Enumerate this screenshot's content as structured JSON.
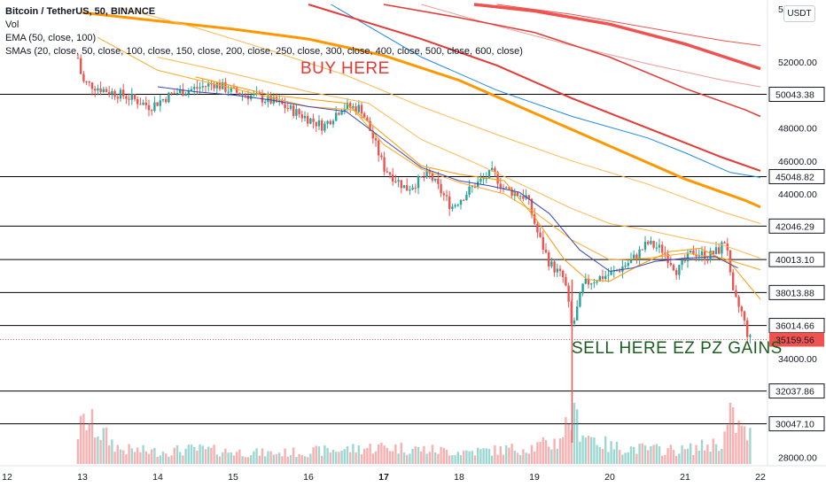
{
  "chart_data": {
    "type": "candlestick",
    "legend": {
      "symbol": "Bitcoin / TetherUS, 50, BINANCE",
      "volume": "Vol",
      "ema": "EMA (50, close, 100)",
      "smas": "SMAs (20, close, 50, close, 100, close, 150, close, 200, close, 250, close, 300, close, 400, close, 500, close, 600, close)"
    },
    "currency": "USDT",
    "annotations": {
      "buy": "BUY HERE",
      "sell": "SELL HERE EZ PZ GAINS"
    },
    "ylim": [
      27500,
      55500
    ],
    "y_ticks": [
      "52000.00",
      "48000.00",
      "46000.00",
      "44000.00",
      "34000.00",
      "28000.00"
    ],
    "y_tick_values": [
      52000,
      48000,
      46000,
      44000,
      34000,
      28000
    ],
    "y_top_clipped_label": "5",
    "horizontal_levels": [
      50043.38,
      45048.82,
      42046.29,
      40013.1,
      38013.88,
      36014.66,
      32037.86,
      30047.1
    ],
    "horizontal_level_labels": [
      "50043.38",
      "45048.82",
      "42046.29",
      "40013.10",
      "38013.88",
      "36014.66",
      "32037.86",
      "30047.10"
    ],
    "last_price": 35159.56,
    "last_price_label": "35159.56",
    "x_ticks": [
      "12",
      "13",
      "14",
      "15",
      "16",
      "17",
      "18",
      "19",
      "20",
      "21",
      "22"
    ],
    "x_tick_days": [
      12,
      13,
      14,
      15,
      16,
      17,
      18,
      19,
      20,
      21,
      22
    ],
    "price_path": [
      [
        12.85,
        54500
      ],
      [
        13.0,
        50800
      ],
      [
        13.3,
        50300
      ],
      [
        13.6,
        49900
      ],
      [
        13.9,
        49300
      ],
      [
        14.2,
        50100
      ],
      [
        14.5,
        50400
      ],
      [
        14.75,
        50700
      ],
      [
        15.0,
        50200
      ],
      [
        15.3,
        49900
      ],
      [
        15.6,
        49500
      ],
      [
        15.9,
        48800
      ],
      [
        16.2,
        48100
      ],
      [
        16.45,
        49300
      ],
      [
        16.7,
        49200
      ],
      [
        16.85,
        47500
      ],
      [
        17.0,
        45600
      ],
      [
        17.3,
        44300
      ],
      [
        17.6,
        45200
      ],
      [
        17.9,
        43200
      ],
      [
        18.2,
        44500
      ],
      [
        18.45,
        45300
      ],
      [
        18.6,
        44300
      ],
      [
        18.9,
        43800
      ],
      [
        19.05,
        41500
      ],
      [
        19.2,
        39800
      ],
      [
        19.4,
        38800
      ],
      [
        19.5,
        35800
      ],
      [
        19.65,
        38500
      ],
      [
        19.85,
        38900
      ],
      [
        20.05,
        39200
      ],
      [
        20.3,
        40000
      ],
      [
        20.5,
        41000
      ],
      [
        20.7,
        40600
      ],
      [
        20.9,
        39300
      ],
      [
        21.1,
        40500
      ],
      [
        21.3,
        40200
      ],
      [
        21.45,
        40600
      ],
      [
        21.55,
        41300
      ],
      [
        21.62,
        38000
      ],
      [
        21.75,
        36800
      ],
      [
        21.85,
        35160
      ]
    ],
    "volume_profile": [
      [
        12.85,
        0.45
      ],
      [
        13.05,
        0.9
      ],
      [
        13.5,
        0.3
      ],
      [
        14.0,
        0.25
      ],
      [
        14.5,
        0.3
      ],
      [
        15.0,
        0.25
      ],
      [
        15.5,
        0.22
      ],
      [
        16.0,
        0.25
      ],
      [
        16.5,
        0.3
      ],
      [
        17.0,
        0.35
      ],
      [
        17.5,
        0.3
      ],
      [
        18.0,
        0.25
      ],
      [
        18.5,
        0.28
      ],
      [
        19.0,
        0.35
      ],
      [
        19.3,
        0.45
      ],
      [
        19.5,
        1.0
      ],
      [
        19.7,
        0.6
      ],
      [
        20.0,
        0.35
      ],
      [
        20.5,
        0.3
      ],
      [
        21.0,
        0.28
      ],
      [
        21.5,
        0.45
      ],
      [
        21.6,
        0.95
      ],
      [
        21.8,
        0.6
      ]
    ],
    "ema_blue": [
      [
        14.0,
        50500
      ],
      [
        14.5,
        50200
      ],
      [
        15.0,
        50000
      ],
      [
        15.5,
        49700
      ],
      [
        16.0,
        49300
      ],
      [
        16.5,
        49000
      ],
      [
        17.0,
        47300
      ],
      [
        17.5,
        45600
      ],
      [
        18.0,
        44800
      ],
      [
        18.4,
        44500
      ],
      [
        18.8,
        44100
      ],
      [
        19.2,
        42800
      ],
      [
        19.6,
        40600
      ],
      [
        20.0,
        39300
      ],
      [
        20.3,
        39500
      ],
      [
        20.6,
        39900
      ],
      [
        21.0,
        40100
      ],
      [
        21.4,
        40200
      ],
      [
        21.7,
        39500
      ]
    ],
    "moving_averages": [
      {
        "color": "#1e88e5",
        "width": 1,
        "points": [
          [
            16.3,
            55500
          ],
          [
            17.5,
            52300
          ],
          [
            18.5,
            50300
          ],
          [
            19.5,
            48700
          ],
          [
            20.5,
            47400
          ],
          [
            21.0,
            46500
          ],
          [
            21.6,
            45300
          ],
          [
            22.0,
            45000
          ]
        ]
      },
      {
        "color": "#ef9a9a",
        "width": 1,
        "points": [
          [
            17.5,
            55500
          ],
          [
            18.5,
            54200
          ],
          [
            19.5,
            53000
          ],
          [
            20.5,
            51900
          ],
          [
            21.5,
            50900
          ],
          [
            22.0,
            50500
          ]
        ]
      },
      {
        "color": "#ef5350",
        "width": 1,
        "points": [
          [
            18.5,
            55500
          ],
          [
            19.5,
            54900
          ],
          [
            20.5,
            54100
          ],
          [
            21.5,
            53300
          ],
          [
            22.0,
            53000
          ]
        ]
      },
      {
        "color": "#e53935",
        "width": 1.5,
        "points": [
          [
            17.0,
            55500
          ],
          [
            18.0,
            54700
          ],
          [
            19.0,
            53800
          ],
          [
            20.0,
            52300
          ],
          [
            21.0,
            50400
          ],
          [
            21.8,
            49100
          ],
          [
            22.0,
            48700
          ]
        ]
      },
      {
        "color": "#e53935",
        "width": 2,
        "points": [
          [
            16.0,
            55500
          ],
          [
            17.5,
            53400
          ],
          [
            18.5,
            51800
          ],
          [
            19.5,
            49800
          ],
          [
            20.5,
            48000
          ],
          [
            21.5,
            46200
          ],
          [
            22.0,
            45400
          ]
        ]
      },
      {
        "color": "#ef5350",
        "width": 3.5,
        "points": [
          [
            18.2,
            55500
          ],
          [
            19.0,
            55100
          ],
          [
            20.0,
            54300
          ],
          [
            21.0,
            53100
          ],
          [
            21.8,
            51900
          ],
          [
            22.0,
            51600
          ]
        ]
      },
      {
        "color": "#ff9800",
        "width": 3,
        "points": [
          [
            13.0,
            55000
          ],
          [
            14.0,
            54500
          ],
          [
            15.0,
            54000
          ],
          [
            16.0,
            53400
          ],
          [
            17.0,
            52400
          ],
          [
            18.0,
            50900
          ],
          [
            19.0,
            48900
          ],
          [
            20.0,
            46900
          ],
          [
            21.0,
            44900
          ],
          [
            21.8,
            43600
          ],
          [
            22.0,
            43200
          ]
        ]
      },
      {
        "color": "#ffb74d",
        "width": 1,
        "points": [
          [
            13.5,
            55300
          ],
          [
            14.5,
            54100
          ],
          [
            15.5,
            52700
          ],
          [
            16.5,
            51200
          ],
          [
            17.5,
            49300
          ],
          [
            18.5,
            47600
          ],
          [
            19.5,
            46000
          ],
          [
            20.5,
            44600
          ],
          [
            21.5,
            42900
          ],
          [
            22.0,
            42200
          ]
        ]
      },
      {
        "color": "#ffb74d",
        "width": 1,
        "points": [
          [
            14.0,
            52300
          ],
          [
            15.0,
            51300
          ],
          [
            16.0,
            50200
          ],
          [
            16.8,
            49500
          ],
          [
            17.5,
            47300
          ],
          [
            18.2,
            45900
          ],
          [
            19.0,
            44200
          ],
          [
            19.5,
            43100
          ],
          [
            20.0,
            42200
          ],
          [
            20.5,
            41800
          ],
          [
            21.0,
            41300
          ],
          [
            21.5,
            40900
          ],
          [
            22.0,
            40100
          ]
        ]
      },
      {
        "color": "#ffa726",
        "width": 1,
        "points": [
          [
            13.2,
            53500
          ],
          [
            14.0,
            51500
          ],
          [
            15.0,
            50400
          ],
          [
            16.0,
            49300
          ],
          [
            16.6,
            49100
          ],
          [
            17.0,
            47000
          ],
          [
            17.5,
            45500
          ],
          [
            18.0,
            44700
          ],
          [
            18.6,
            44000
          ],
          [
            19.0,
            42900
          ],
          [
            19.5,
            41200
          ],
          [
            20.0,
            40000
          ],
          [
            20.5,
            40100
          ],
          [
            21.0,
            40400
          ],
          [
            21.5,
            40100
          ],
          [
            22.0,
            39400
          ]
        ]
      },
      {
        "color": "#ff9800",
        "width": 1,
        "points": [
          [
            14.5,
            51100
          ],
          [
            15.5,
            50000
          ],
          [
            16.5,
            49500
          ],
          [
            17.0,
            47600
          ],
          [
            17.5,
            45700
          ],
          [
            18.0,
            45200
          ],
          [
            18.6,
            44800
          ],
          [
            19.0,
            42600
          ],
          [
            19.4,
            40000
          ],
          [
            19.7,
            38800
          ],
          [
            20.0,
            38700
          ],
          [
            20.4,
            39700
          ],
          [
            20.8,
            40500
          ],
          [
            21.2,
            40700
          ],
          [
            21.6,
            39800
          ],
          [
            22.0,
            37600
          ]
        ]
      }
    ]
  }
}
